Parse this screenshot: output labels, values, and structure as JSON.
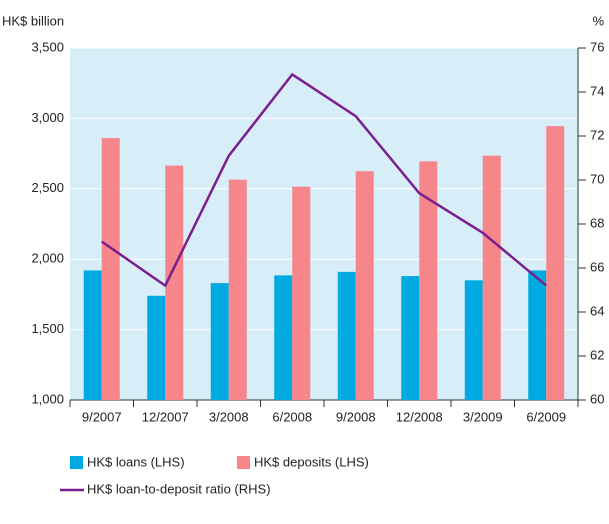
{
  "chart_data": {
    "type": "bar_line",
    "y_label": "HK$ billion",
    "y2_label": "%",
    "categories": [
      "9/2007",
      "12/2007",
      "3/2008",
      "6/2008",
      "9/2008",
      "12/2008",
      "3/2009",
      "6/2009"
    ],
    "series": [
      {
        "name": "HK$ loans (LHS)",
        "color": "#00a9e0",
        "type": "bar",
        "values": [
          1920,
          1740,
          1830,
          1885,
          1910,
          1880,
          1850,
          1920
        ]
      },
      {
        "name": "HK$ deposits (LHS)",
        "color": "#f7868a",
        "type": "bar",
        "values": [
          2860,
          2665,
          2565,
          2515,
          2625,
          2695,
          2735,
          2945
        ]
      },
      {
        "name": "HK$ loan-to-deposit ratio (RHS)",
        "color": "#7b1f8e",
        "type": "line",
        "axis": "y2",
        "values": [
          67.2,
          65.2,
          71.1,
          74.8,
          72.9,
          69.4,
          67.6,
          65.2
        ]
      }
    ],
    "ylim": [
      1000,
      3500
    ],
    "yticks": [
      {
        "value": 1000,
        "label": "1,000"
      },
      {
        "value": 1500,
        "label": "1,500"
      },
      {
        "value": 2000,
        "label": "2,000"
      },
      {
        "value": 2500,
        "label": "2,500"
      },
      {
        "value": 3000,
        "label": "3,000"
      },
      {
        "value": 3500,
        "label": "3,500"
      }
    ],
    "y2lim": [
      60,
      76
    ],
    "y2ticks": [
      60,
      62,
      64,
      66,
      68,
      70,
      72,
      74,
      76
    ],
    "grid": true,
    "background": "#d7eef9"
  }
}
